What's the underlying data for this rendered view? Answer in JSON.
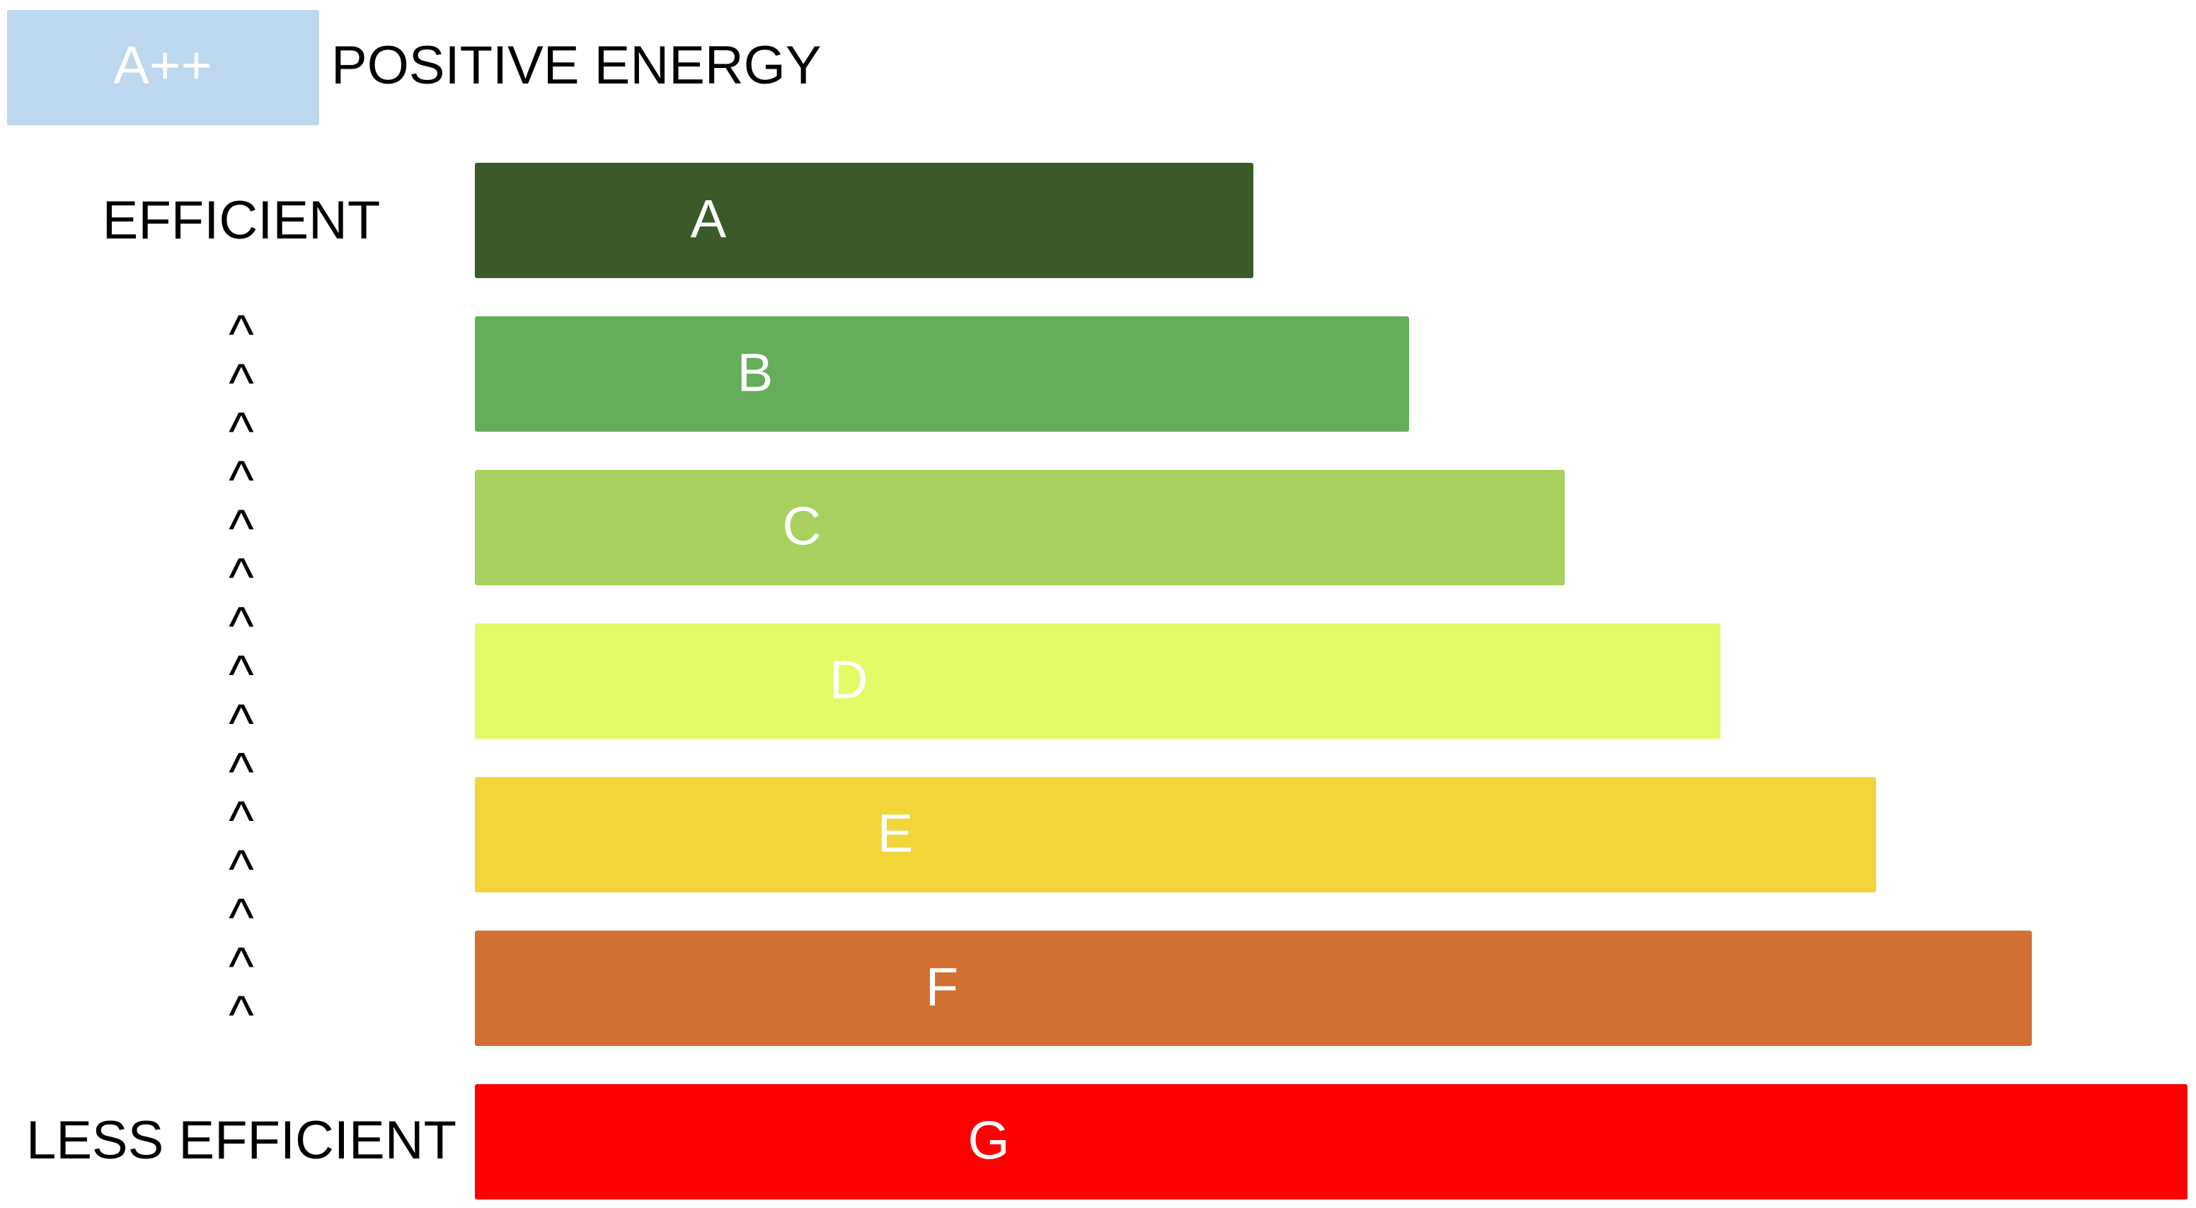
{
  "header": {
    "badge": "A++",
    "title": "POSITIVE ENERGY"
  },
  "scale": {
    "top_label": "EFFICIENT",
    "bottom_label": "LESS EFFICIENT",
    "arrows": [
      "^",
      "^",
      "^",
      "^",
      "^",
      "^",
      "^",
      "^",
      "^",
      "^",
      "^",
      "^",
      "^",
      "^",
      "^"
    ]
  },
  "bars": [
    {
      "label": "A",
      "color": "#3a5a28"
    },
    {
      "label": "B",
      "color": "#64ae5a"
    },
    {
      "label": "C",
      "color": "#a8d05e"
    },
    {
      "label": "D",
      "color": "#e4fa66"
    },
    {
      "label": "E",
      "color": "#f2d53a"
    },
    {
      "label": "F",
      "color": "#d27031"
    },
    {
      "label": "G",
      "color": "#ff0000"
    }
  ]
}
